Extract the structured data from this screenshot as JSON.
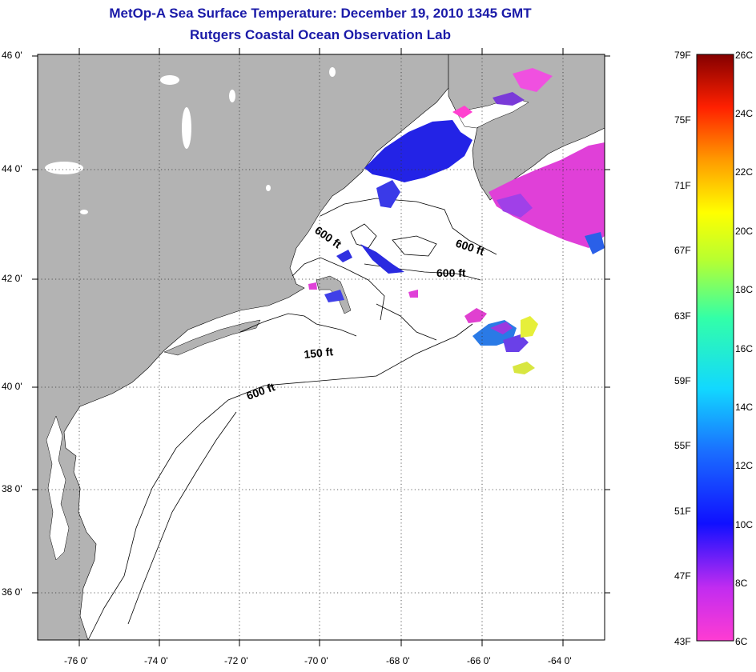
{
  "title_line1": "MetOp-A Sea Surface Temperature:  December 19, 2010 1345 GMT",
  "title_line2": "Rutgers Coastal Ocean Observation Lab",
  "lat_labels": [
    "46 0'",
    "44 0'",
    "42 0'",
    "40 0'",
    "38 0'",
    "36 0'"
  ],
  "lon_labels": [
    "-76 0'",
    "-74 0'",
    "-72 0'",
    "-70 0'",
    "-68 0'",
    "-66 0'",
    "-64 0'"
  ],
  "contour_labels": [
    "600 ft",
    "600 ft",
    "600 ft",
    "150 ft",
    "600 ft"
  ],
  "colorbar": {
    "fahrenheit": [
      "79F",
      "75F",
      "71F",
      "67F",
      "63F",
      "59F",
      "55F",
      "51F",
      "47F",
      "43F"
    ],
    "celsius": [
      "26C",
      "24C",
      "22C",
      "20C",
      "18C",
      "16C",
      "14C",
      "12C",
      "10C",
      "8C",
      "6C"
    ]
  },
  "colors": {
    "title": "#1a1aa8",
    "land": "#b3b3b3",
    "ocean": "#ffffff"
  }
}
